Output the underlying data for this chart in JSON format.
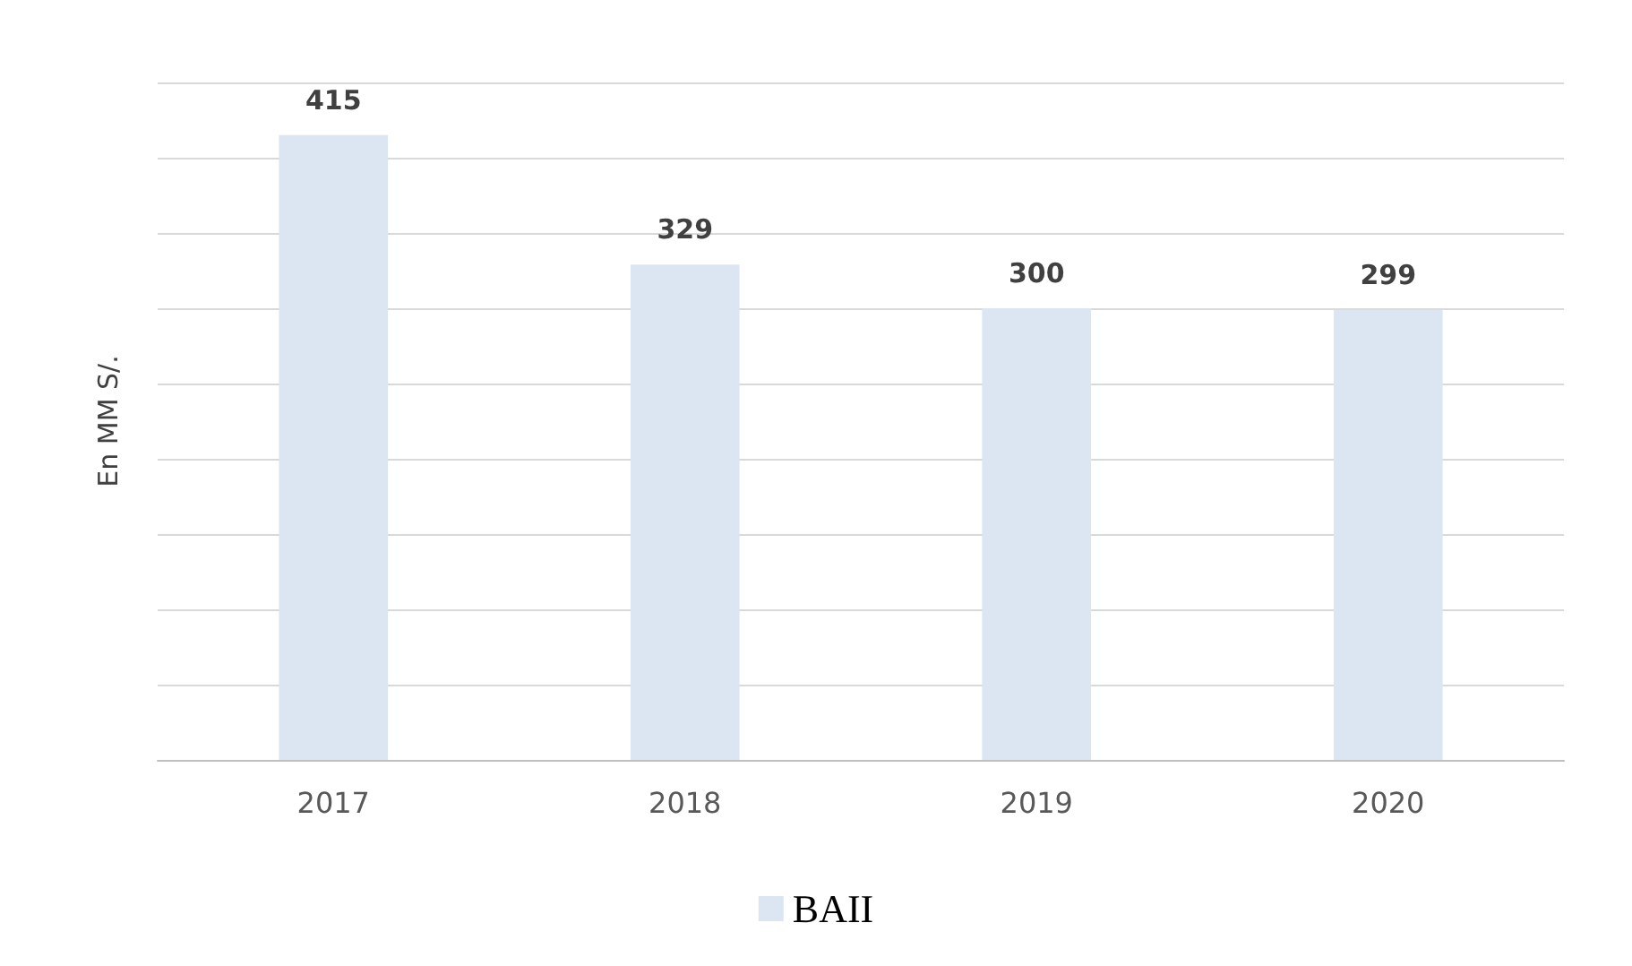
{
  "chart_data": {
    "type": "bar",
    "ylabel": "En MM S/.",
    "categories": [
      "2017",
      "2018",
      "2019",
      "2020"
    ],
    "series": [
      {
        "name": "BAII",
        "color": "#dce6f2",
        "values": [
          415,
          329,
          300,
          299
        ]
      }
    ],
    "ylim": [
      0,
      450
    ],
    "yticks": [
      {
        "value": 0,
        "label": null
      },
      {
        "value": 50,
        "label": null
      },
      {
        "value": 100,
        "label": null
      },
      {
        "value": 150,
        "label": null
      },
      {
        "value": 200,
        "label": null
      },
      {
        "value": 250,
        "label": null
      },
      {
        "value": 300,
        "label": null
      },
      {
        "value": 350,
        "label": null
      },
      {
        "value": 400,
        "label": null
      },
      {
        "value": 450,
        "label": null
      }
    ],
    "tick_labels": "x",
    "grid": "y",
    "legend": "bottom",
    "data_labels": true
  }
}
